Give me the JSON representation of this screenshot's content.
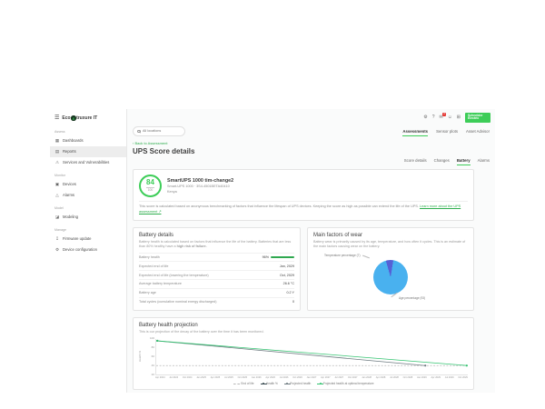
{
  "accent_color": "#3dcd58",
  "brand": {
    "name_pre": "Eco",
    "name_mid": "S",
    "name_post": "truxure IT"
  },
  "sidebar": {
    "sections": [
      {
        "label": "Assess",
        "items": [
          {
            "label": "Dashboards",
            "icon": "dashboards-icon",
            "glyph": "▦",
            "active": false
          },
          {
            "label": "Reports",
            "icon": "reports-icon",
            "glyph": "▤",
            "active": true
          },
          {
            "label": "Services and Vulnerabilities",
            "icon": "services-icon",
            "glyph": "⚠",
            "active": false
          }
        ]
      },
      {
        "label": "Monitor",
        "items": [
          {
            "label": "Devices",
            "icon": "devices-icon",
            "glyph": "▣",
            "active": false
          },
          {
            "label": "Alarms",
            "icon": "alarms-icon",
            "glyph": "△",
            "active": false
          }
        ]
      },
      {
        "label": "Model",
        "items": [
          {
            "label": "Modeling",
            "icon": "modeling-icon",
            "glyph": "◪",
            "active": false
          }
        ]
      },
      {
        "label": "Manage",
        "items": [
          {
            "label": "Firmware update",
            "icon": "firmware-update-icon",
            "glyph": "↧",
            "active": false
          },
          {
            "label": "Device configuration",
            "icon": "device-configuration-icon",
            "glyph": "⚙",
            "active": false
          }
        ]
      }
    ]
  },
  "topbar": {
    "icons": [
      {
        "name": "settings-icon",
        "glyph": "⚙"
      },
      {
        "name": "help-icon",
        "glyph": "?"
      },
      {
        "name": "notifications-icon",
        "glyph": "✉",
        "badge": "2"
      },
      {
        "name": "feedback-icon",
        "glyph": "☺"
      },
      {
        "name": "apps-icon",
        "glyph": "⊞"
      }
    ],
    "logo_text": "Schneider Electric"
  },
  "search": {
    "placeholder": "All locations"
  },
  "primary_tabs": [
    {
      "label": "Assessments",
      "active": true
    },
    {
      "label": "Sensor plots",
      "active": false
    },
    {
      "label": "Asset Advisor",
      "active": false
    }
  ],
  "page": {
    "back_link": "‹ Back to Assessment",
    "title": "UPS Score details"
  },
  "detail_tabs": [
    {
      "label": "Score details",
      "active": false
    },
    {
      "label": "Changes",
      "active": false
    },
    {
      "label": "Battery",
      "active": true
    },
    {
      "label": "Alarms",
      "active": false
    }
  ],
  "score_card": {
    "score": "84",
    "max": "100",
    "device_name": "SmartUPS 1000 tim-change2",
    "device_meta": "Smart-UPS 1000 · 3S4-4501BETA40410",
    "location": "Kenya",
    "description": "This score is calculated based on anonymous benchmarking of factors that influence the lifespan of UPS devices. Keeping the score as high as possible can extend the life of the UPS. ",
    "link": "Learn more about the UPS assessment ↗"
  },
  "battery_details": {
    "title": "Battery details",
    "description": "Battery health is calculated based on factors that influence the life of the battery. Batteries that are less than 80% healthy have a ",
    "description_bold": "high risk of failure.",
    "rows": [
      {
        "label": "Battery health",
        "value": "96%",
        "bar": true
      },
      {
        "label": "Expected end of life",
        "value": "Jan, 2029",
        "bar": false
      },
      {
        "label": "Expected end of life (lowering the temperature)",
        "value": "Oct, 2029",
        "bar": false
      },
      {
        "label": "Average battery temperature",
        "value": "26.6 °C",
        "bar": false
      },
      {
        "label": "Battery age",
        "value": "0.2 Y",
        "bar": false
      },
      {
        "label": "Total cycles (cumulative nominal energy discharged)",
        "value": "0",
        "bar": false
      }
    ]
  },
  "wear_card": {
    "title": "Main factors of wear",
    "description": "Battery wear is primarily caused by its age, temperature, and how often it cycles. This is an estimate of the main factors causing wear on the battery.",
    "labels": {
      "temperature": "Temperature percentage (7)",
      "age": "Age percentage (93)"
    }
  },
  "projection_card": {
    "title": "Battery health projection",
    "description": "This is our projection of the decay of the battery over the time it has been monitored."
  },
  "chart_data": [
    {
      "type": "pie",
      "title": "Main factors of wear",
      "slices": [
        {
          "label": "Temperature percentage",
          "value": 7,
          "color": "#5560d6"
        },
        {
          "label": "Age percentage",
          "value": 93,
          "color": "#49b1ef"
        }
      ],
      "start_angle_deg": -16
    },
    {
      "type": "line",
      "title": "Battery health projection",
      "xlabel": "",
      "ylabel": "Health %",
      "ylim": [
        20,
        100
      ],
      "yticks": [
        20,
        40,
        60,
        80,
        100
      ],
      "grid": false,
      "legend_position": "bottom",
      "x_ticks": [
        "Apr 2024",
        "Jul 2024",
        "Oct 2024",
        "Jan 2025",
        "Apr 2025",
        "Jul 2025",
        "Oct 2025",
        "Jan 2026",
        "Apr 2026",
        "Jul 2026",
        "Oct 2026",
        "Jan 2027",
        "Apr 2027",
        "Jul 2027",
        "Oct 2027",
        "Jan 2028",
        "Apr 2028",
        "Jul 2028",
        "Oct 2028",
        "Jan 2029",
        "Apr 2029",
        "Jul 2029",
        "Oct 2029"
      ],
      "series": [
        {
          "name": "End of life",
          "color": "#b8b8b8",
          "style": "dashed",
          "points": [
            [
              "Apr 2024",
              40
            ],
            [
              "Oct 2029",
              40
            ]
          ]
        },
        {
          "name": "Health %",
          "color": "#37474f",
          "style": "solid",
          "points": [
            [
              "Apr 2024",
              96
            ]
          ]
        },
        {
          "name": "Projected health",
          "color": "#6d7a80",
          "style": "solid",
          "points": [
            [
              "Apr 2024",
              96
            ],
            [
              "Jan 2029",
              40
            ]
          ]
        },
        {
          "name": "Projected health at optimal temperature",
          "color": "#34c471",
          "style": "solid",
          "points": [
            [
              "Apr 2024",
              96
            ],
            [
              "Oct 2029",
              40
            ]
          ]
        }
      ]
    }
  ]
}
